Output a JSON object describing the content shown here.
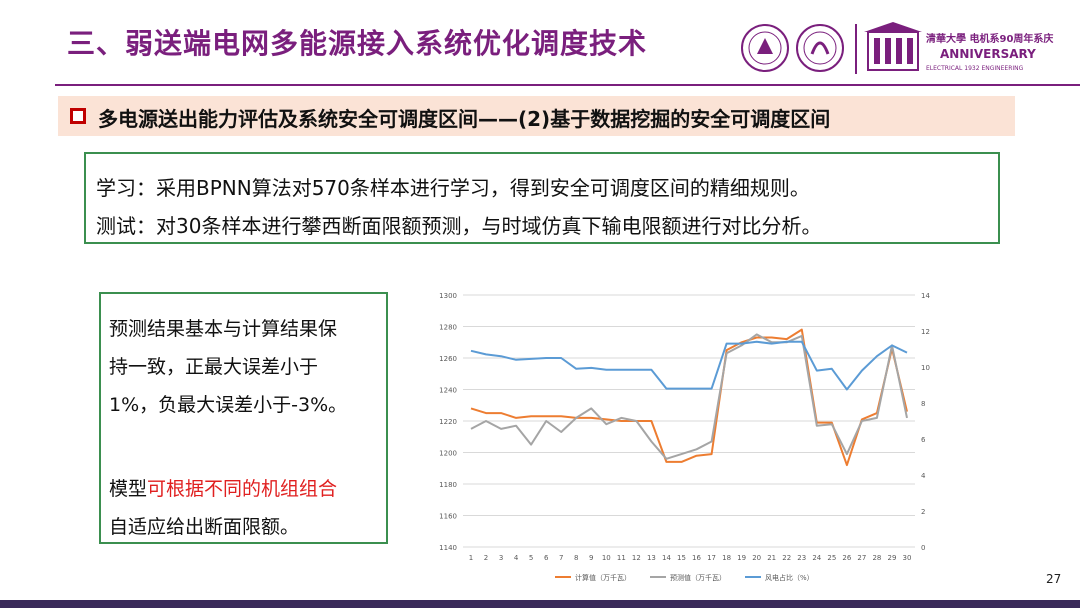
{
  "header": {
    "title": "三、弱送端电网多能源接入系统优化调度技术",
    "logo_caption_1": "清華大學 电机系90周年系庆",
    "logo_caption_2": "ANNIVERSARY",
    "logo_caption_3": "ELECTRICAL 1932 ENGINEERING"
  },
  "subheading": "多电源送出能力评估及系统安全可调度区间——(2)基于数据挖掘的安全可调度区间",
  "method_box": {
    "line1": "学习：采用BPNN算法对570条样本进行学习，得到安全可调度区间的精细规则。",
    "line2": "测试：对30条样本进行攀西断面限额预测，与时域仿真下输电限额进行对比分析。"
  },
  "result_box": {
    "l1": "预测结果基本与计算结果保",
    "l2": "持一致，正最大误差小于",
    "l3": "1%，负最大误差小于-3%。",
    "l4_pre": "模型",
    "l4_red": "可根据不同的机组组合",
    "l5_red": "自适应给出断面限额。"
  },
  "page_number": "27",
  "colors": {
    "title": "#7a1f7d",
    "calc": "#ed7d31",
    "pred": "#a5a5a5",
    "wind": "#5b9bd5",
    "box_border": "#3b8f4f",
    "accent_red": "#e02020"
  },
  "chart_data": {
    "type": "line",
    "x": [
      1,
      2,
      3,
      4,
      5,
      6,
      7,
      8,
      9,
      10,
      11,
      12,
      13,
      14,
      15,
      16,
      17,
      18,
      19,
      20,
      21,
      22,
      23,
      24,
      25,
      26,
      27,
      28,
      29,
      30
    ],
    "y_left_ticks": [
      1140,
      1160,
      1180,
      1200,
      1220,
      1240,
      1260,
      1280,
      1300
    ],
    "y_right_ticks": [
      0,
      2,
      4,
      6,
      8,
      10,
      12,
      14
    ],
    "ylim_left": [
      1140,
      1300
    ],
    "ylim_right": [
      0,
      14
    ],
    "series": [
      {
        "name": "计算值（万千瓦）",
        "axis": "left",
        "color": "#ed7d31",
        "values": [
          1228,
          1225,
          1225,
          1222,
          1223,
          1223,
          1223,
          1222,
          1222,
          1221,
          1220,
          1220,
          1220,
          1194,
          1194,
          1198,
          1199,
          1265,
          1270,
          1273,
          1273,
          1272,
          1278,
          1219,
          1219,
          1192,
          1221,
          1225,
          1266,
          1226
        ]
      },
      {
        "name": "预测值（万千瓦）",
        "axis": "left",
        "color": "#a5a5a5",
        "values": [
          1215,
          1220,
          1215,
          1217,
          1205,
          1220,
          1213,
          1222,
          1228,
          1218,
          1222,
          1220,
          1207,
          1196,
          1199,
          1202,
          1207,
          1263,
          1268,
          1275,
          1270,
          1270,
          1274,
          1217,
          1218,
          1199,
          1220,
          1222,
          1268,
          1222
        ]
      },
      {
        "name": "风电占比（%）",
        "axis": "right",
        "color": "#5b9bd5",
        "values": [
          10.9,
          10.7,
          10.6,
          10.4,
          10.45,
          10.5,
          10.5,
          9.9,
          9.95,
          9.85,
          9.85,
          9.85,
          9.85,
          8.8,
          8.8,
          8.8,
          8.8,
          11.3,
          11.3,
          11.4,
          11.3,
          11.4,
          11.4,
          9.8,
          9.9,
          8.75,
          9.8,
          10.6,
          11.2,
          10.8
        ]
      }
    ],
    "legend_placement": "bottom",
    "grid": true
  }
}
